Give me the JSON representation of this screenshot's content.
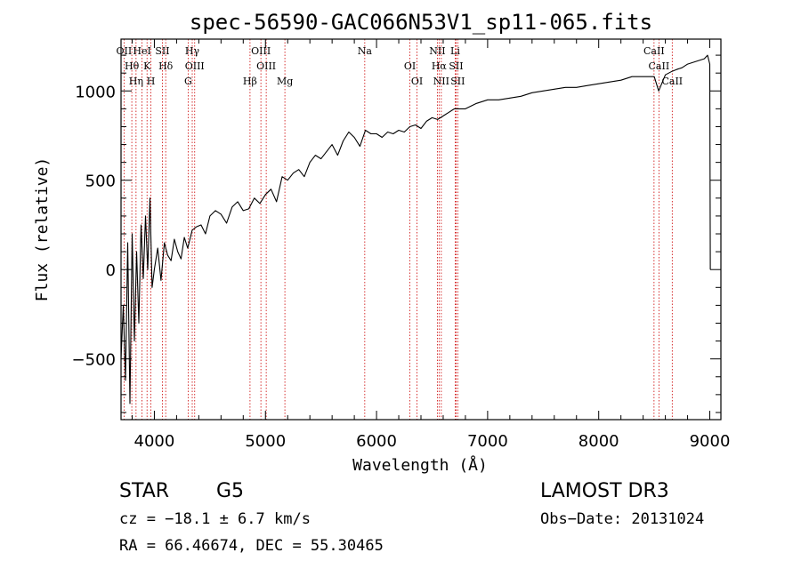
{
  "chart_data": {
    "type": "line",
    "title": "spec-56590-GAC066N53V1_sp11-065.fits",
    "xlabel": "Wavelength (Å)",
    "ylabel": "Flux (relative)",
    "xlim": [
      3700,
      9100
    ],
    "ylim": [
      -840,
      1290
    ],
    "xticks": [
      4000,
      5000,
      6000,
      7000,
      8000,
      9000
    ],
    "xtick_labels": [
      "4000",
      "5000",
      "6000",
      "7000",
      "8000",
      "9000"
    ],
    "yticks": [
      -500,
      0,
      500,
      1000
    ],
    "ytick_labels": [
      "−500",
      "0",
      "500",
      "1000"
    ],
    "grid": false,
    "series": [
      {
        "name": "flux",
        "x": [
          3700,
          3720,
          3740,
          3760,
          3780,
          3800,
          3820,
          3840,
          3860,
          3880,
          3900,
          3920,
          3940,
          3960,
          3980,
          4000,
          4030,
          4060,
          4090,
          4120,
          4150,
          4180,
          4210,
          4240,
          4270,
          4300,
          4340,
          4380,
          4420,
          4460,
          4500,
          4550,
          4600,
          4650,
          4700,
          4750,
          4800,
          4850,
          4900,
          4950,
          5000,
          5050,
          5100,
          5150,
          5200,
          5250,
          5300,
          5350,
          5400,
          5450,
          5500,
          5550,
          5600,
          5650,
          5700,
          5750,
          5800,
          5850,
          5900,
          5950,
          6000,
          6050,
          6100,
          6150,
          6200,
          6250,
          6300,
          6350,
          6400,
          6450,
          6500,
          6550,
          6600,
          6650,
          6700,
          6750,
          6800,
          6900,
          7000,
          7100,
          7200,
          7300,
          7400,
          7500,
          7600,
          7700,
          7800,
          7900,
          8000,
          8100,
          8200,
          8300,
          8400,
          8500,
          8540,
          8600,
          8660,
          8700,
          8750,
          8800,
          8850,
          8900,
          8950,
          8980,
          9000,
          9005
        ],
        "y": [
          -500,
          -200,
          -620,
          150,
          -750,
          200,
          -400,
          100,
          -300,
          250,
          -50,
          300,
          0,
          400,
          -100,
          0,
          120,
          -60,
          150,
          80,
          50,
          170,
          100,
          60,
          180,
          120,
          220,
          240,
          250,
          200,
          300,
          330,
          310,
          260,
          350,
          380,
          330,
          340,
          400,
          370,
          420,
          450,
          380,
          520,
          500,
          540,
          560,
          520,
          600,
          640,
          620,
          660,
          700,
          640,
          720,
          770,
          740,
          690,
          780,
          760,
          760,
          740,
          770,
          760,
          780,
          770,
          800,
          810,
          790,
          830,
          850,
          840,
          860,
          880,
          900,
          900,
          900,
          930,
          950,
          950,
          960,
          970,
          990,
          1000,
          1010,
          1020,
          1020,
          1030,
          1040,
          1050,
          1060,
          1080,
          1080,
          1080,
          1000,
          1090,
          1110,
          1120,
          1130,
          1150,
          1160,
          1170,
          1180,
          1200,
          1150,
          0
        ]
      }
    ],
    "lines": [
      {
        "label": "OII",
        "wavelength": 3727
      },
      {
        "label": "Hθ",
        "wavelength": 3797
      },
      {
        "label": "Hη",
        "wavelength": 3835
      },
      {
        "label": "HeI",
        "wavelength": 3889
      },
      {
        "label": "K",
        "wavelength": 3934
      },
      {
        "label": "H",
        "wavelength": 3969
      },
      {
        "label": "SII",
        "wavelength": 4072
      },
      {
        "label": "Hδ",
        "wavelength": 4102
      },
      {
        "label": "G",
        "wavelength": 4304
      },
      {
        "label": "Hγ",
        "wavelength": 4341
      },
      {
        "label": "OIII",
        "wavelength": 4363
      },
      {
        "label": "Hβ",
        "wavelength": 4861
      },
      {
        "label": "OIII",
        "wavelength": 4959
      },
      {
        "label": "OIII",
        "wavelength": 5007
      },
      {
        "label": "Mg",
        "wavelength": 5175
      },
      {
        "label": "Na",
        "wavelength": 5894
      },
      {
        "label": "OI",
        "wavelength": 6300
      },
      {
        "label": "OI",
        "wavelength": 6364
      },
      {
        "label": "NII",
        "wavelength": 6548
      },
      {
        "label": "Hα",
        "wavelength": 6563
      },
      {
        "label": "NII",
        "wavelength": 6583
      },
      {
        "label": "Li",
        "wavelength": 6708
      },
      {
        "label": "SII",
        "wavelength": 6716
      },
      {
        "label": "SII",
        "wavelength": 6731
      },
      {
        "label": "CaII",
        "wavelength": 8498
      },
      {
        "label": "CaII",
        "wavelength": 8542
      },
      {
        "label": "CaII",
        "wavelength": 8662
      }
    ],
    "colors": {
      "spectrum": "#000000",
      "line_marker": "#cc0000",
      "axes": "#000000"
    }
  },
  "info": {
    "object_class": "STAR",
    "subclass": "G5",
    "survey": "LAMOST DR3",
    "redshift": "cz = −18.1 ± 6.7 km/s",
    "obs_date": "Obs−Date: 20131024",
    "coords": "RA =  66.46674, DEC =  55.30465"
  }
}
